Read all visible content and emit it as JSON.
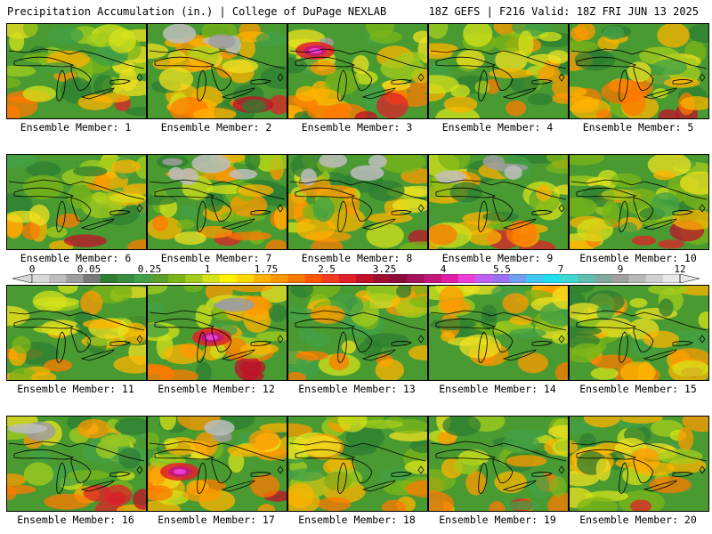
{
  "header": {
    "left": "Precipitation Accumulation (in.) | College of DuPage NEXLAB",
    "right": "18Z GEFS | F216 Valid: 18Z FRI JUN 13 2025"
  },
  "members": [
    {
      "caption": "Ensemble Member: 1",
      "intensity": 0.55,
      "gray": 0.0,
      "hotspot": "none"
    },
    {
      "caption": "Ensemble Member: 2",
      "intensity": 0.55,
      "gray": 0.4,
      "hotspot": "none"
    },
    {
      "caption": "Ensemble Member: 3",
      "intensity": 0.65,
      "gray": 0.1,
      "hotspot": "upper-left"
    },
    {
      "caption": "Ensemble Member: 4",
      "intensity": 0.45,
      "gray": 0.0,
      "hotspot": "none"
    },
    {
      "caption": "Ensemble Member: 5",
      "intensity": 0.5,
      "gray": 0.0,
      "hotspot": "none"
    },
    {
      "caption": "Ensemble Member: 6",
      "intensity": 0.45,
      "gray": 0.0,
      "hotspot": "none"
    },
    {
      "caption": "Ensemble Member: 7",
      "intensity": 0.55,
      "gray": 0.5,
      "hotspot": "none"
    },
    {
      "caption": "Ensemble Member: 8",
      "intensity": 0.4,
      "gray": 0.35,
      "hotspot": "none"
    },
    {
      "caption": "Ensemble Member: 9",
      "intensity": 0.5,
      "gray": 0.4,
      "hotspot": "none"
    },
    {
      "caption": "Ensemble Member: 10",
      "intensity": 0.6,
      "gray": 0.0,
      "hotspot": "none"
    },
    {
      "caption": "Ensemble Member: 11",
      "intensity": 0.65,
      "gray": 0.0,
      "hotspot": "none"
    },
    {
      "caption": "Ensemble Member: 12",
      "intensity": 0.6,
      "gray": 0.2,
      "hotspot": "center"
    },
    {
      "caption": "Ensemble Member: 13",
      "intensity": 0.45,
      "gray": 0.0,
      "hotspot": "none"
    },
    {
      "caption": "Ensemble Member: 14",
      "intensity": 0.5,
      "gray": 0.0,
      "hotspot": "none"
    },
    {
      "caption": "Ensemble Member: 15",
      "intensity": 0.35,
      "gray": 0.0,
      "hotspot": "none"
    },
    {
      "caption": "Ensemble Member: 16",
      "intensity": 0.5,
      "gray": 0.15,
      "hotspot": "none"
    },
    {
      "caption": "Ensemble Member: 17",
      "intensity": 0.7,
      "gray": 0.2,
      "hotspot": "lower-left"
    },
    {
      "caption": "Ensemble Member: 18",
      "intensity": 0.5,
      "gray": 0.0,
      "hotspot": "none"
    },
    {
      "caption": "Ensemble Member: 19",
      "intensity": 0.5,
      "gray": 0.0,
      "hotspot": "none"
    },
    {
      "caption": "Ensemble Member: 20",
      "intensity": 0.3,
      "gray": 0.0,
      "hotspot": "none"
    }
  ],
  "colorbar": {
    "labels": [
      "0",
      "0.05",
      "0.25",
      "1",
      "1.75",
      "2.5",
      "3.25",
      "4",
      "5.5",
      "7",
      "9",
      "12"
    ],
    "colors": [
      "#d9d9d9",
      "#bdbdbd",
      "#9e9e9e",
      "#7a7a7a",
      "#2e7d32",
      "#388e3c",
      "#43a047",
      "#5aa02c",
      "#7cb518",
      "#a4cc1c",
      "#d4e21a",
      "#fff200",
      "#ffd700",
      "#ffb300",
      "#ff9800",
      "#ff7a00",
      "#ff5500",
      "#f23a1e",
      "#e0202a",
      "#c0102a",
      "#a00e2e",
      "#8a0c3a",
      "#a4125a",
      "#c2187a",
      "#e020a8",
      "#ee40d8",
      "#c060f0",
      "#9a70f0",
      "#70a0f0",
      "#40c8f0",
      "#20e0f0",
      "#40d8d0",
      "#60c0b0",
      "#80a8a0",
      "#a0a0a0",
      "#b8b8b8",
      "#d0d0d0",
      "#e8e8e8"
    ]
  }
}
